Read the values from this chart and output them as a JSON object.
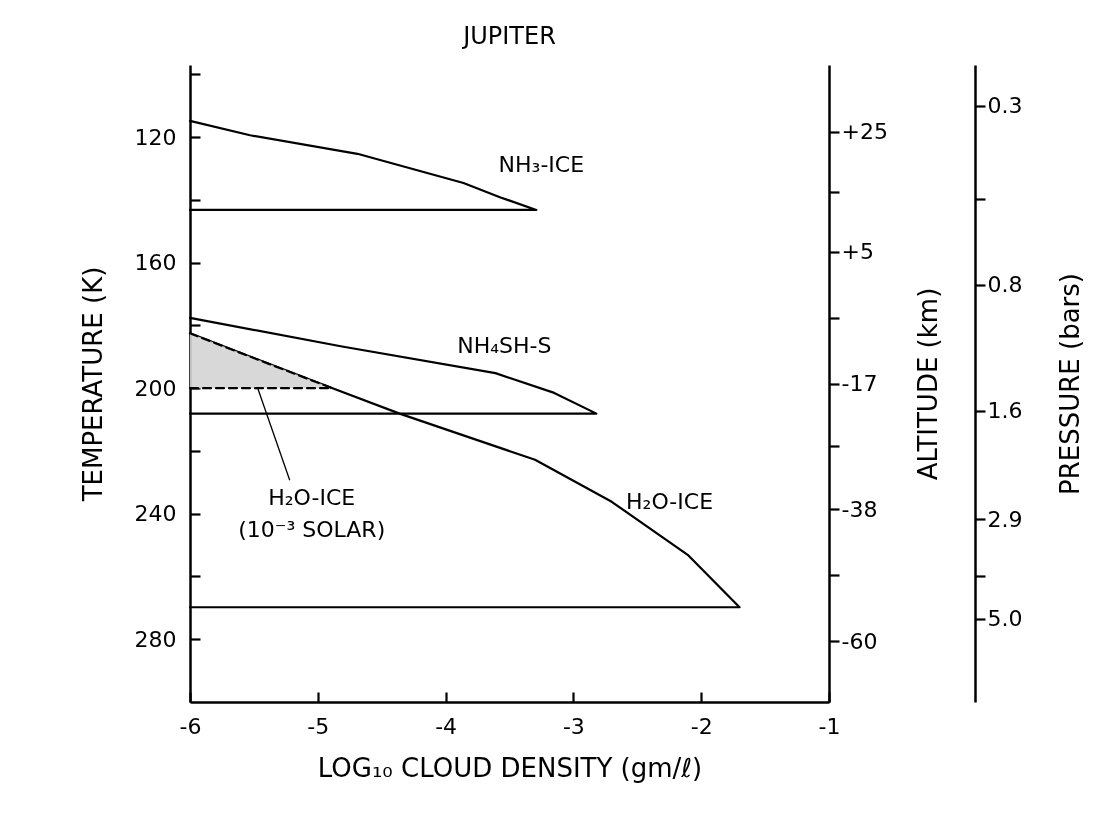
{
  "chart_data": {
    "type": "line",
    "title": "JUPITER",
    "xlabel": "LOG₁₀ CLOUD DENSITY (gm/ℓ)",
    "ylabel": "TEMPERATURE (K)",
    "y2label": "ALTITUDE (km)",
    "y3label": "PRESSURE (bars)",
    "log": "y3",
    "xlim": [
      -6,
      -1
    ],
    "xticks": [
      -6,
      -5,
      -4,
      -3,
      -2,
      -1
    ],
    "ylim": [
      300,
      97
    ],
    "yticks": [
      {
        "value": 100,
        "label": null
      },
      120,
      {
        "value": 140,
        "label": null
      },
      160,
      {
        "value": 180,
        "label": null
      },
      200,
      {
        "value": 220,
        "label": null
      },
      240,
      {
        "value": 260,
        "label": null
      },
      280
    ],
    "y2lim": [
      -70.1,
      36.1
    ],
    "y2ticks": [
      {
        "value": 25,
        "label": "+25"
      },
      {
        "value": 15,
        "label": null
      },
      {
        "value": 5,
        "label": "+5"
      },
      {
        "value": -6,
        "label": null
      },
      -17,
      {
        "value": -27.5,
        "label": null
      },
      -38,
      {
        "value": -49,
        "label": null
      },
      -60
    ],
    "y3lim": [
      7.9,
      0.24
    ],
    "y3ticks": [
      0.3,
      {
        "value": 0.5,
        "label": null
      },
      0.8,
      1.6,
      2.9,
      {
        "value": 3.95,
        "label": null
      },
      {
        "value": 5,
        "label": "5.0"
      }
    ],
    "series": [
      {
        "name": "NH₃-ICE",
        "color": "#000000",
        "x": [
          -6,
          -5.53,
          -4.69,
          -3.86,
          -3.57,
          -3.29,
          -6
        ],
        "values": [
          114.8,
          119.4,
          125.3,
          134.6,
          139.2,
          143.2,
          143.2
        ]
      },
      {
        "name": "NH₄SH-S",
        "color": "#000000",
        "x": [
          -6,
          -4.81,
          -3.61,
          -3.15,
          -2.82,
          -6
        ],
        "values": [
          177.6,
          186.7,
          195.2,
          201.5,
          208.1,
          208.1
        ]
      },
      {
        "name": "H₂O-ICE",
        "color": "#000000",
        "x": [
          -6,
          -5.45,
          -4.9,
          -4.36,
          -3.3,
          -2.7,
          -2.1,
          -1.7,
          -6
        ],
        "values": [
          182.5,
          191.2,
          199.8,
          208.1,
          222.8,
          236.2,
          253.3,
          269.8,
          269.8
        ]
      },
      {
        "color": "#000000",
        "line_style": "dashed",
        "x": [
          -6,
          -5.45,
          -4.9
        ],
        "values": [
          182.5,
          191.2,
          199.8
        ],
        "lower": [
          182.5,
          191.2,
          199.8
        ],
        "upper": [
          200,
          200,
          200
        ]
      },
      {
        "color": "#000000",
        "line_style": "dashed",
        "x": [
          -6,
          -4.9
        ],
        "values": [
          200,
          200
        ]
      }
    ],
    "annotations": [
      {
        "text": "H₂O-ICE\n(10⁻³ SOLAR)",
        "x": -5.47,
        "y": 200
      }
    ]
  }
}
